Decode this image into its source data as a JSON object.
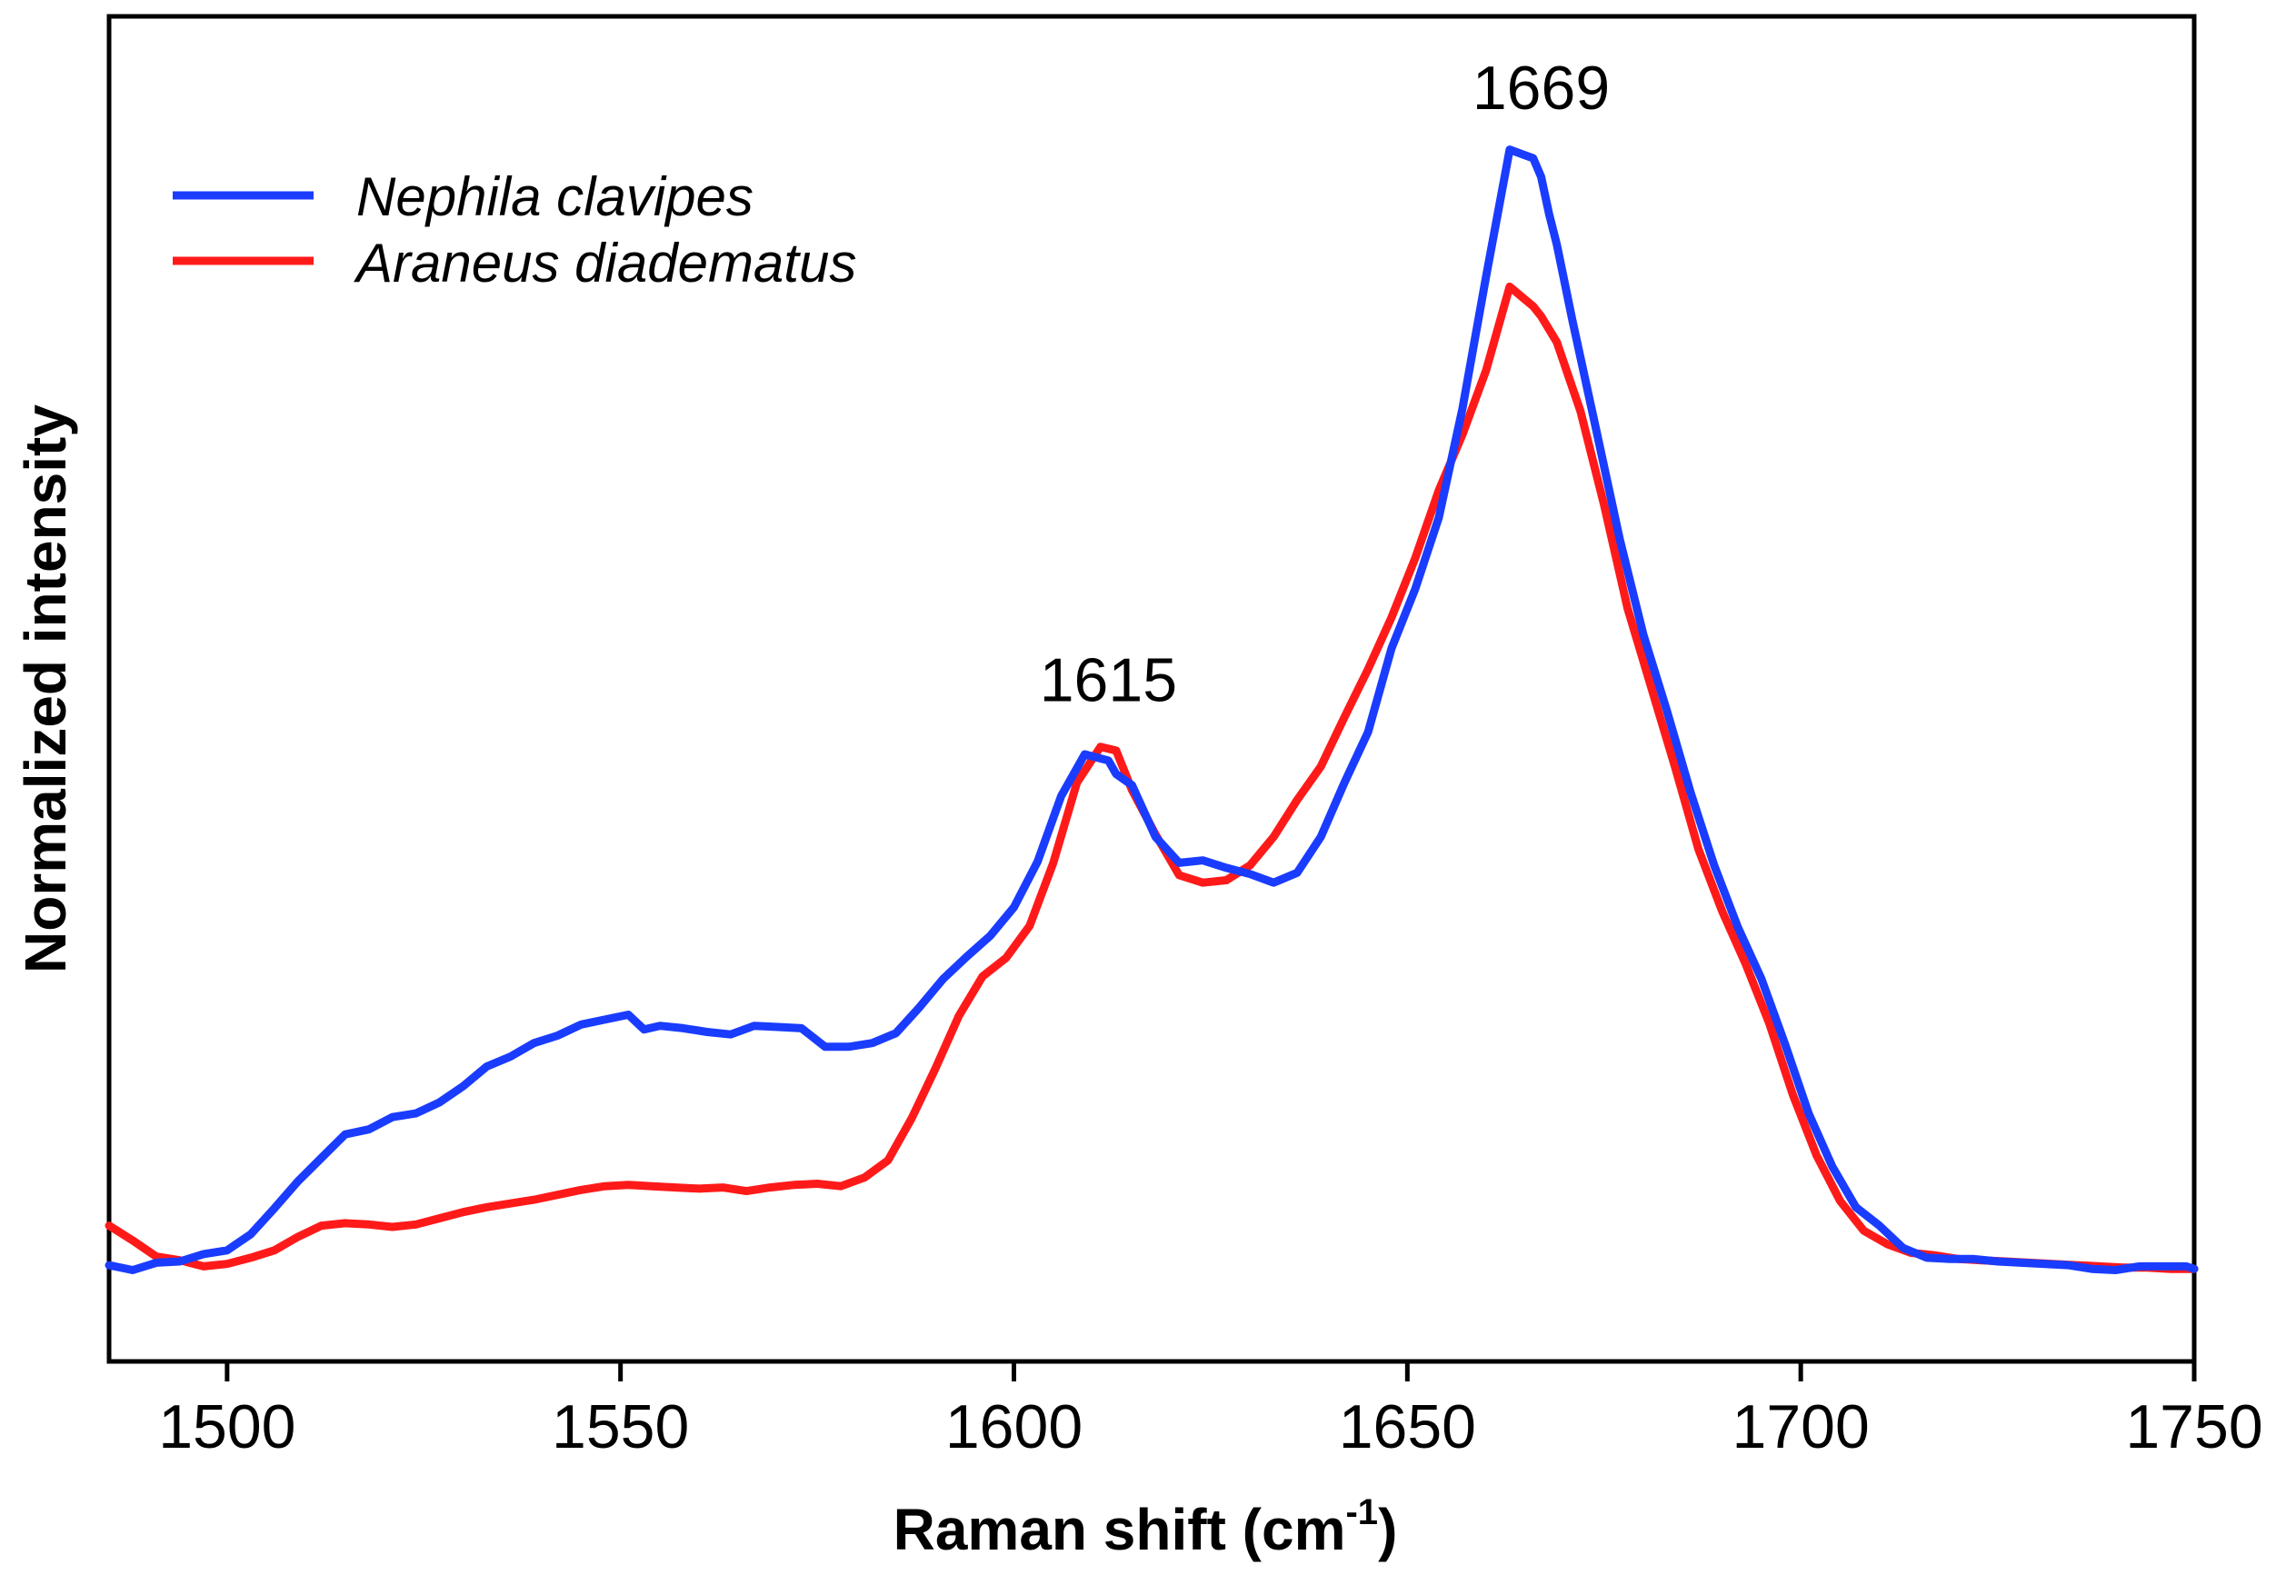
{
  "chart_data": {
    "type": "line",
    "xlabel": "Raman shift (cm",
    "xlabel_sup": "-1",
    "xlabel_close": ")",
    "ylabel": "Normalized intensity",
    "xlim": [
      1485,
      1750
    ],
    "ylim": [
      0,
      1.09
    ],
    "x_ticks": [
      1500,
      1550,
      1600,
      1650,
      1700,
      1750
    ],
    "y_ticks_shown": false,
    "grid": false,
    "legend_position": "top-left",
    "annotations": [
      {
        "text": "1615",
        "x": 1612,
        "y": 0.535
      },
      {
        "text": "1669",
        "x": 1667,
        "y": 1.015
      }
    ],
    "series": [
      {
        "name": "Nephila clavipes",
        "color": "#1a3cff",
        "x": [
          1485,
          1488,
          1491,
          1494,
          1497,
          1500,
          1503,
          1506,
          1509,
          1512,
          1515,
          1518,
          1521,
          1524,
          1527,
          1530,
          1533,
          1536,
          1539,
          1542,
          1545,
          1548,
          1551,
          1553,
          1555,
          1558,
          1561,
          1564,
          1567,
          1570,
          1573,
          1576,
          1579,
          1582,
          1585,
          1588,
          1591,
          1594,
          1597,
          1600,
          1603,
          1606,
          1609,
          1612,
          1613,
          1615,
          1618,
          1621,
          1624,
          1627,
          1630,
          1633,
          1636,
          1639,
          1642,
          1645,
          1648,
          1651,
          1654,
          1657,
          1660,
          1663,
          1666,
          1667,
          1668,
          1669,
          1671,
          1674,
          1677,
          1680,
          1683,
          1686,
          1689,
          1692,
          1695,
          1698,
          1701,
          1704,
          1707,
          1710,
          1713,
          1716,
          1719,
          1722,
          1725,
          1728,
          1731,
          1734,
          1737,
          1740,
          1743,
          1746,
          1749,
          1750
        ],
        "values": [
          0.078,
          0.074,
          0.08,
          0.081,
          0.087,
          0.09,
          0.103,
          0.124,
          0.146,
          0.165,
          0.184,
          0.188,
          0.198,
          0.201,
          0.21,
          0.223,
          0.239,
          0.247,
          0.258,
          0.264,
          0.273,
          0.277,
          0.281,
          0.269,
          0.272,
          0.27,
          0.267,
          0.265,
          0.272,
          0.271,
          0.27,
          0.255,
          0.255,
          0.258,
          0.266,
          0.287,
          0.31,
          0.328,
          0.345,
          0.368,
          0.405,
          0.458,
          0.492,
          0.487,
          0.476,
          0.467,
          0.425,
          0.404,
          0.406,
          0.4,
          0.395,
          0.388,
          0.396,
          0.425,
          0.469,
          0.51,
          0.578,
          0.626,
          0.684,
          0.772,
          0.879,
          0.982,
          0.975,
          0.96,
          0.93,
          0.905,
          0.843,
          0.755,
          0.666,
          0.589,
          0.527,
          0.461,
          0.402,
          0.352,
          0.31,
          0.257,
          0.201,
          0.158,
          0.125,
          0.11,
          0.092,
          0.084,
          0.083,
          0.083,
          0.081,
          0.08,
          0.079,
          0.078,
          0.075,
          0.074,
          0.077,
          0.077,
          0.077,
          0.075
        ]
      },
      {
        "name": "Araneus diadematus",
        "color": "#ff1a1a",
        "x": [
          1485,
          1488,
          1491,
          1494,
          1497,
          1500,
          1503,
          1506,
          1509,
          1512,
          1515,
          1518,
          1521,
          1524,
          1527,
          1530,
          1533,
          1536,
          1539,
          1542,
          1545,
          1548,
          1551,
          1554,
          1557,
          1560,
          1563,
          1566,
          1569,
          1572,
          1575,
          1578,
          1581,
          1584,
          1587,
          1590,
          1593,
          1596,
          1599,
          1602,
          1605,
          1608,
          1611,
          1613,
          1615,
          1618,
          1621,
          1624,
          1627,
          1630,
          1633,
          1636,
          1639,
          1642,
          1645,
          1648,
          1651,
          1654,
          1657,
          1660,
          1663,
          1666,
          1667,
          1669,
          1672,
          1675,
          1678,
          1681,
          1684,
          1687,
          1690,
          1693,
          1696,
          1699,
          1702,
          1705,
          1708,
          1711,
          1714,
          1717,
          1720,
          1723,
          1726,
          1729,
          1732,
          1735,
          1738,
          1741,
          1744,
          1747,
          1750
        ],
        "values": [
          0.11,
          0.098,
          0.085,
          0.082,
          0.077,
          0.079,
          0.084,
          0.09,
          0.101,
          0.11,
          0.112,
          0.111,
          0.109,
          0.111,
          0.116,
          0.121,
          0.125,
          0.128,
          0.131,
          0.135,
          0.139,
          0.142,
          0.143,
          0.142,
          0.141,
          0.14,
          0.141,
          0.138,
          0.141,
          0.143,
          0.144,
          0.142,
          0.149,
          0.163,
          0.197,
          0.237,
          0.28,
          0.312,
          0.327,
          0.353,
          0.404,
          0.469,
          0.498,
          0.495,
          0.463,
          0.427,
          0.394,
          0.388,
          0.39,
          0.402,
          0.425,
          0.455,
          0.482,
          0.522,
          0.561,
          0.603,
          0.651,
          0.706,
          0.751,
          0.803,
          0.871,
          0.855,
          0.847,
          0.826,
          0.77,
          0.694,
          0.61,
          0.546,
          0.482,
          0.415,
          0.365,
          0.322,
          0.274,
          0.216,
          0.167,
          0.13,
          0.106,
          0.095,
          0.088,
          0.086,
          0.083,
          0.082,
          0.081,
          0.08,
          0.079,
          0.078,
          0.077,
          0.076,
          0.076,
          0.075,
          0.075
        ]
      }
    ]
  }
}
